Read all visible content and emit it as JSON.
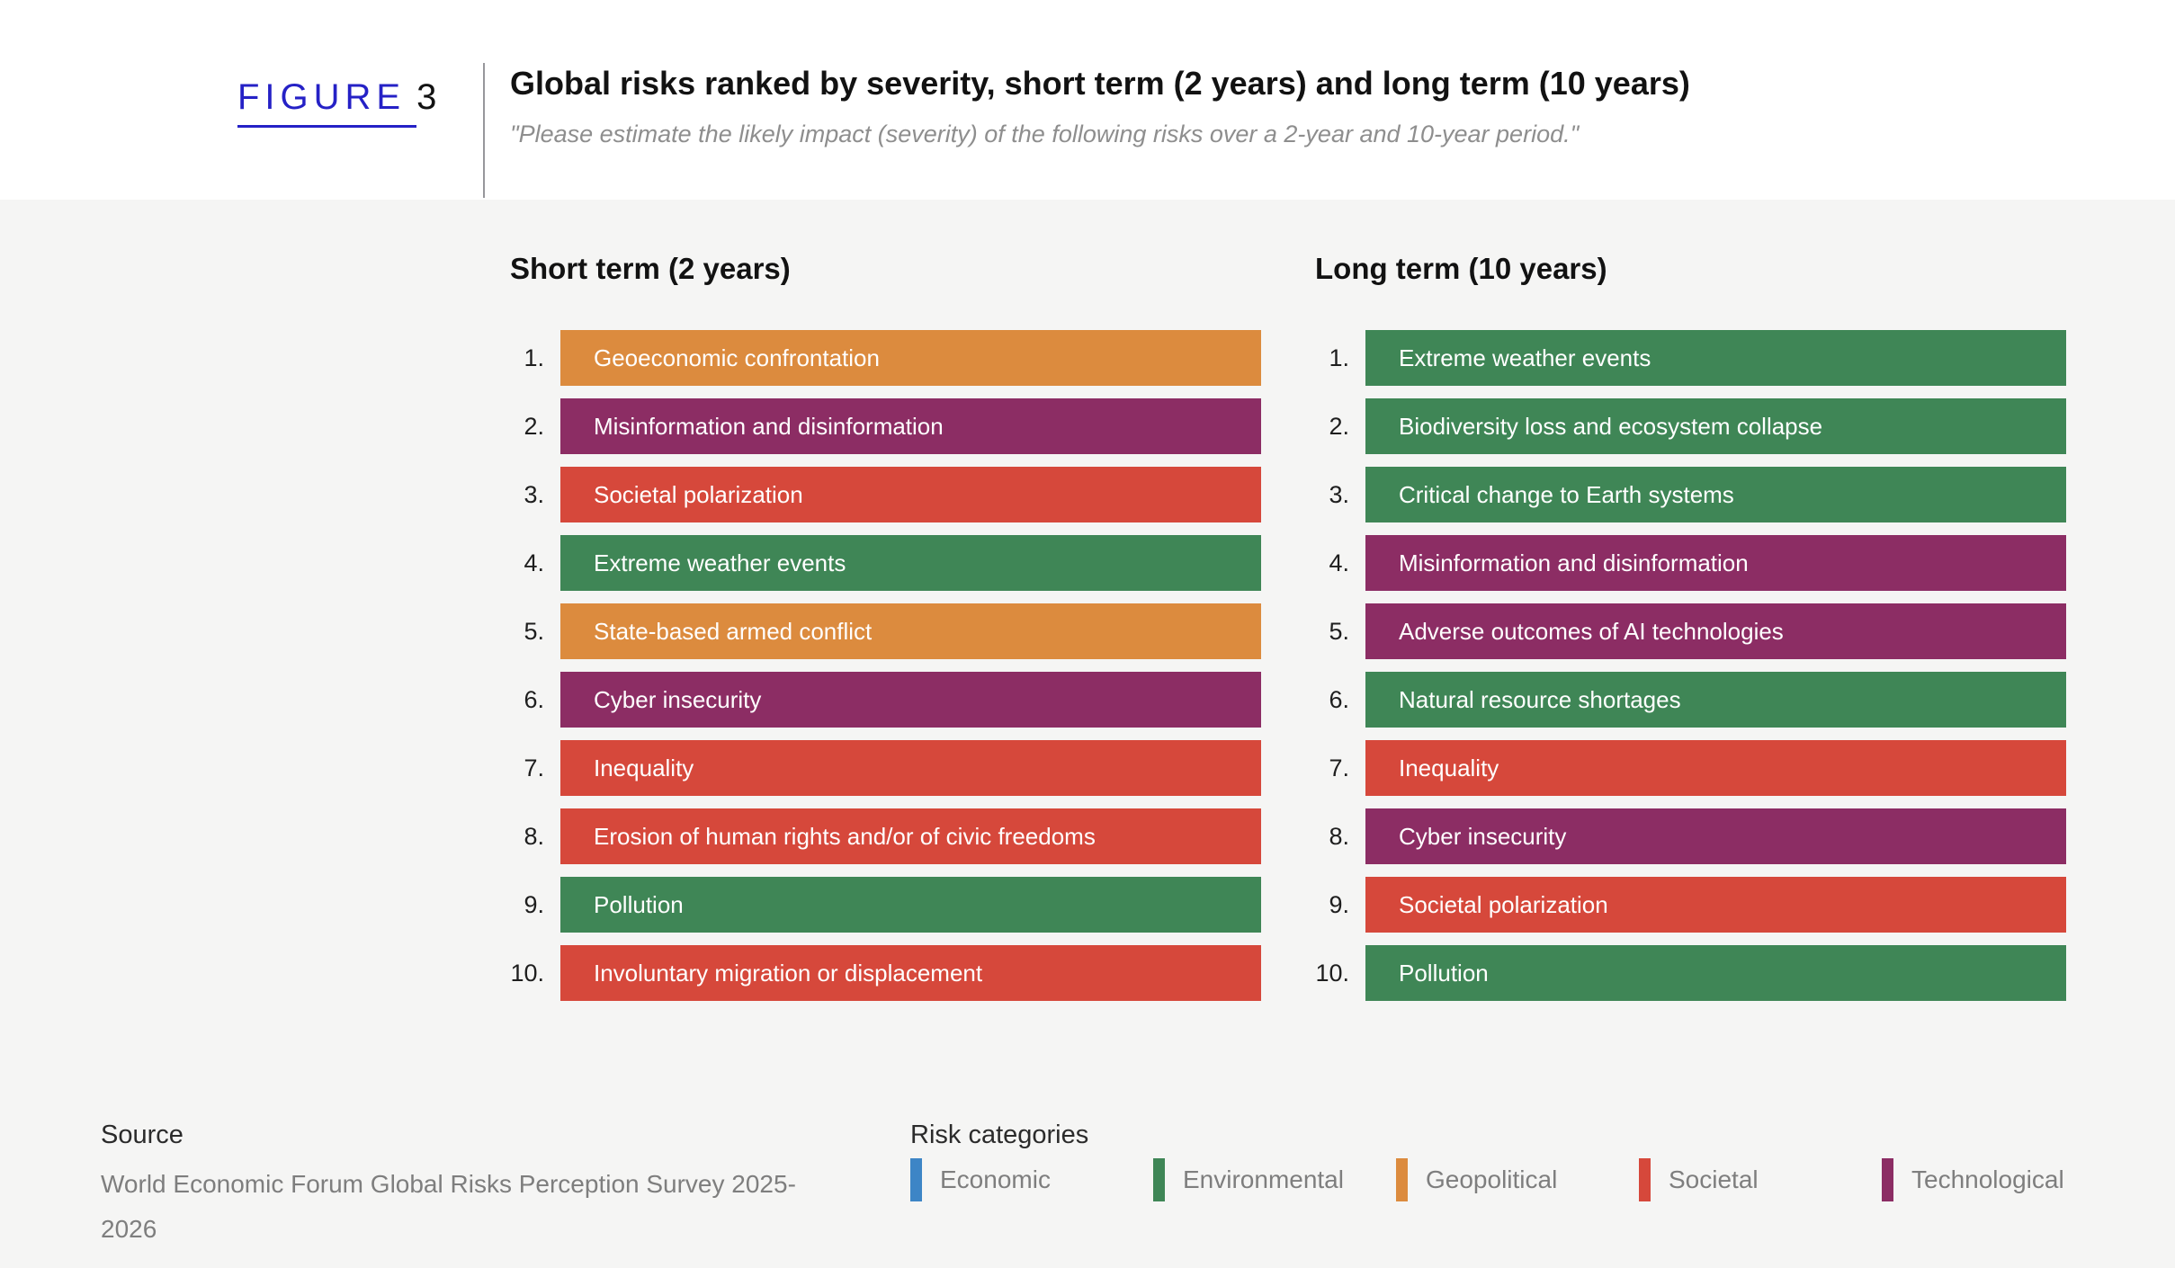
{
  "figure": {
    "label": "FIGURE",
    "number": "3"
  },
  "header": {
    "title": "Global risks ranked by severity, short term (2 years) and long term (10 years)",
    "subtitle": "\"Please estimate the likely impact (severity) of the following risks over a 2-year and 10-year period.\""
  },
  "category_colors": {
    "Economic": "#3d85c6",
    "Environmental": "#3f8656",
    "Geopolitical": "#dc8b3e",
    "Societal": "#d6483b",
    "Technological": "#8c2d64"
  },
  "columns": [
    {
      "title": "Short term (2 years)",
      "items": [
        {
          "rank": "1.",
          "label": "Geoeconomic confrontation",
          "category": "Geopolitical"
        },
        {
          "rank": "2.",
          "label": "Misinformation and disinformation",
          "category": "Technological"
        },
        {
          "rank": "3.",
          "label": "Societal polarization",
          "category": "Societal"
        },
        {
          "rank": "4.",
          "label": "Extreme weather events",
          "category": "Environmental"
        },
        {
          "rank": "5.",
          "label": "State-based armed conflict",
          "category": "Geopolitical"
        },
        {
          "rank": "6.",
          "label": "Cyber insecurity",
          "category": "Technological"
        },
        {
          "rank": "7.",
          "label": "Inequality",
          "category": "Societal"
        },
        {
          "rank": "8.",
          "label": "Erosion of human rights and/or of civic freedoms",
          "category": "Societal"
        },
        {
          "rank": "9.",
          "label": "Pollution",
          "category": "Environmental"
        },
        {
          "rank": "10.",
          "label": "Involuntary migration or displacement",
          "category": "Societal"
        }
      ]
    },
    {
      "title": "Long term (10 years)",
      "items": [
        {
          "rank": "1.",
          "label": "Extreme weather events",
          "category": "Environmental"
        },
        {
          "rank": "2.",
          "label": "Biodiversity loss and ecosystem collapse",
          "category": "Environmental"
        },
        {
          "rank": "3.",
          "label": "Critical change to Earth systems",
          "category": "Environmental"
        },
        {
          "rank": "4.",
          "label": "Misinformation and disinformation",
          "category": "Technological"
        },
        {
          "rank": "5.",
          "label": "Adverse outcomes of AI technologies",
          "category": "Technological"
        },
        {
          "rank": "6.",
          "label": "Natural resource shortages",
          "category": "Environmental"
        },
        {
          "rank": "7.",
          "label": "Inequality",
          "category": "Societal"
        },
        {
          "rank": "8.",
          "label": "Cyber insecurity",
          "category": "Technological"
        },
        {
          "rank": "9.",
          "label": "Societal polarization",
          "category": "Societal"
        },
        {
          "rank": "10.",
          "label": "Pollution",
          "category": "Environmental"
        }
      ]
    }
  ],
  "footer": {
    "source_label": "Source",
    "source_text": "World Economic Forum Global Risks Perception Survey 2025-2026",
    "legend_title": "Risk categories",
    "legend": [
      {
        "label": "Economic",
        "color": "#3d85c6"
      },
      {
        "label": "Environmental",
        "color": "#3f8656"
      },
      {
        "label": "Geopolitical",
        "color": "#dc8b3e"
      },
      {
        "label": "Societal",
        "color": "#d6483b"
      },
      {
        "label": "Technological",
        "color": "#8c2d64"
      }
    ]
  },
  "chart_data": {
    "type": "table",
    "title": "Global risks ranked by severity, short term (2 years) and long term (10 years)",
    "subtitle": "\"Please estimate the likely impact (severity) of the following risks over a 2-year and 10-year period.\"",
    "legend_position": "bottom",
    "panels": [
      {
        "title": "Short term (2 years)",
        "ranking": [
          {
            "rank": 1,
            "risk": "Geoeconomic confrontation",
            "category": "Geopolitical"
          },
          {
            "rank": 2,
            "risk": "Misinformation and disinformation",
            "category": "Technological"
          },
          {
            "rank": 3,
            "risk": "Societal polarization",
            "category": "Societal"
          },
          {
            "rank": 4,
            "risk": "Extreme weather events",
            "category": "Environmental"
          },
          {
            "rank": 5,
            "risk": "State-based armed conflict",
            "category": "Geopolitical"
          },
          {
            "rank": 6,
            "risk": "Cyber insecurity",
            "category": "Technological"
          },
          {
            "rank": 7,
            "risk": "Inequality",
            "category": "Societal"
          },
          {
            "rank": 8,
            "risk": "Erosion of human rights and/or of civic freedoms",
            "category": "Societal"
          },
          {
            "rank": 9,
            "risk": "Pollution",
            "category": "Environmental"
          },
          {
            "rank": 10,
            "risk": "Involuntary migration or displacement",
            "category": "Societal"
          }
        ]
      },
      {
        "title": "Long term (10 years)",
        "ranking": [
          {
            "rank": 1,
            "risk": "Extreme weather events",
            "category": "Environmental"
          },
          {
            "rank": 2,
            "risk": "Biodiversity loss and ecosystem collapse",
            "category": "Environmental"
          },
          {
            "rank": 3,
            "risk": "Critical change to Earth systems",
            "category": "Environmental"
          },
          {
            "rank": 4,
            "risk": "Misinformation and disinformation",
            "category": "Technological"
          },
          {
            "rank": 5,
            "risk": "Adverse outcomes of AI technologies",
            "category": "Technological"
          },
          {
            "rank": 6,
            "risk": "Natural resource shortages",
            "category": "Environmental"
          },
          {
            "rank": 7,
            "risk": "Inequality",
            "category": "Societal"
          },
          {
            "rank": 8,
            "risk": "Cyber insecurity",
            "category": "Technological"
          },
          {
            "rank": 9,
            "risk": "Societal polarization",
            "category": "Societal"
          },
          {
            "rank": 10,
            "risk": "Pollution",
            "category": "Environmental"
          }
        ]
      }
    ],
    "categories_legend": [
      "Economic",
      "Environmental",
      "Geopolitical",
      "Societal",
      "Technological"
    ],
    "category_colors": {
      "Economic": "#3d85c6",
      "Environmental": "#3f8656",
      "Geopolitical": "#dc8b3e",
      "Societal": "#d6483b",
      "Technological": "#8c2d64"
    }
  }
}
